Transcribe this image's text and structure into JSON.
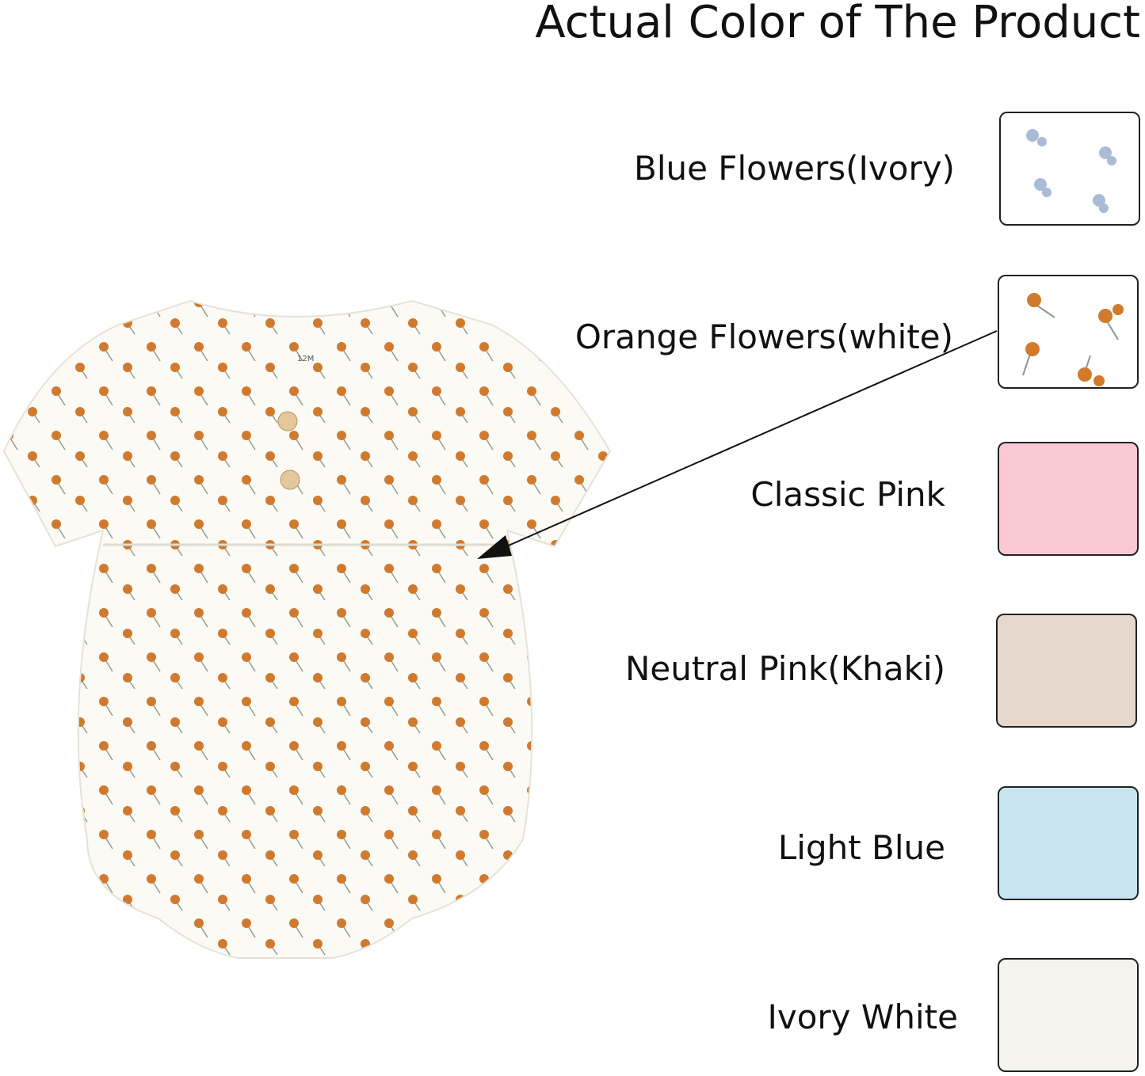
{
  "title": "Actual Color of The Product",
  "product_tag": "12M",
  "colors": [
    {
      "label": "Blue Flowers(Ivory)",
      "swatch": "#fbfaf3",
      "pattern": "blue-flowers",
      "accent": "#9fb3d0"
    },
    {
      "label": "Orange Flowers(white)",
      "swatch": "#fbfaf5",
      "pattern": "orange-flowers",
      "accent": "#d27a2c"
    },
    {
      "label": "Classic Pink",
      "swatch": "#fcc8d3"
    },
    {
      "label": "Neutral Pink(Khaki)",
      "swatch": "#e6d8cc"
    },
    {
      "label": "Light Blue",
      "swatch": "#c9e4f1"
    },
    {
      "label": "Ivory White",
      "swatch": "#f4f4ec"
    }
  ],
  "arrow_points_to": "Orange Flowers(white)"
}
